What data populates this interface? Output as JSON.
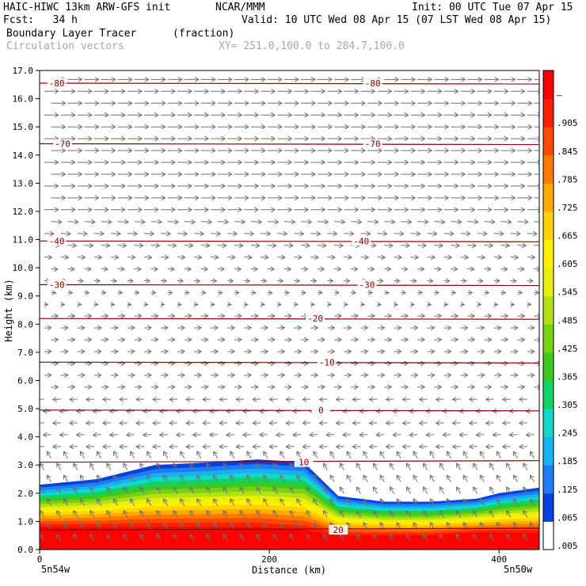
{
  "header": {
    "model": "HAIC-HIWC 13km ARW-GFS init",
    "org": "NCAR/MMM",
    "init": "Init: 00 UTC Tue 07 Apr 15",
    "fcst": "Fcst:   34 h",
    "valid": "Valid: 10 UTC Wed 08 Apr 15 (07 LST Wed 08 Apr 15)",
    "field": "Boundary Layer Tracer",
    "field_units": "(fraction)",
    "vectors": "Circulation vectors",
    "xy": "XY= 251.0,100.0 to 284.7,100.0"
  },
  "footer": {
    "left_loc": "5n54w",
    "right_loc": "5n50w"
  },
  "chart_data": {
    "type": "heatmap",
    "xlabel": "Distance (km)",
    "ylabel": "Height (km)",
    "xlim": [
      0,
      435
    ],
    "ylim": [
      0,
      17
    ],
    "x_ticks": [
      0,
      200,
      400
    ],
    "x_tick_labels": [
      "0",
      "200",
      "400"
    ],
    "y_ticks": [
      0,
      1,
      2,
      3,
      4,
      5,
      6,
      7,
      8,
      9,
      10,
      11,
      12,
      13,
      14,
      15,
      16,
      17
    ],
    "y_tick_labels": [
      "0.0",
      "1.0",
      "2.0",
      "3.0",
      "4.0",
      "5.0",
      "6.0",
      "7.0",
      "8.0",
      "9.0",
      "10.0",
      "11.0",
      "12.0",
      "13.0",
      "14.0",
      "15.0",
      "16.0",
      "17.0"
    ],
    "colorbar": {
      "labels": [
        ".005",
        ".065",
        ".125",
        ".185",
        ".245",
        ".305",
        ".365",
        ".425",
        ".485",
        ".545",
        ".605",
        ".665",
        ".725",
        ".785",
        ".845",
        ".905",
        "–"
      ],
      "colors": [
        "#ffffff",
        "#0a40e0",
        "#1e7cf5",
        "#17b0f0",
        "#14d8c8",
        "#12d264",
        "#3cc81e",
        "#78d214",
        "#b4e014",
        "#e6f00a",
        "#fff000",
        "#ffd200",
        "#ffaa00",
        "#ff7800",
        "#ff4800",
        "#ff1e00",
        "#ff0000"
      ]
    },
    "tracer_layer": {
      "x_km": [
        0,
        50,
        100,
        150,
        190,
        230,
        260,
        300,
        340,
        380,
        400,
        435
      ],
      "top_km": [
        2.3,
        2.5,
        3.0,
        3.1,
        3.2,
        3.1,
        1.9,
        1.7,
        1.7,
        1.8,
        2.0,
        2.2
      ],
      "red_top_km": [
        0.8,
        0.8,
        0.8,
        0.8,
        0.8,
        0.7,
        0.5,
        0.5,
        0.5,
        0.6,
        0.6,
        0.6
      ]
    },
    "temperature_contours": [
      {
        "label": "-80",
        "y_km": 16.55,
        "label_x_km": [
          15,
          290
        ]
      },
      {
        "label": "-70",
        "y_km": 14.4,
        "label_x_km": [
          20,
          290
        ]
      },
      {
        "label": "-40",
        "y_km": 10.95,
        "label_x_km": [
          15,
          280
        ]
      },
      {
        "label": "-30",
        "y_km": 9.4,
        "label_x_km": [
          15,
          285
        ]
      },
      {
        "label": "-20",
        "y_km": 8.2,
        "label_x_km": [
          240
        ]
      },
      {
        "label": "-10",
        "y_km": 6.65,
        "label_x_km": [
          250
        ]
      },
      {
        "label": "0",
        "y_km": 4.95,
        "label_x_km": [
          245
        ]
      },
      {
        "label": "10",
        "y_km": 3.1,
        "label_x_km": [
          230
        ]
      },
      {
        "label": "20",
        "y_km": 0.7,
        "label_x_km": [
          260
        ]
      }
    ]
  }
}
